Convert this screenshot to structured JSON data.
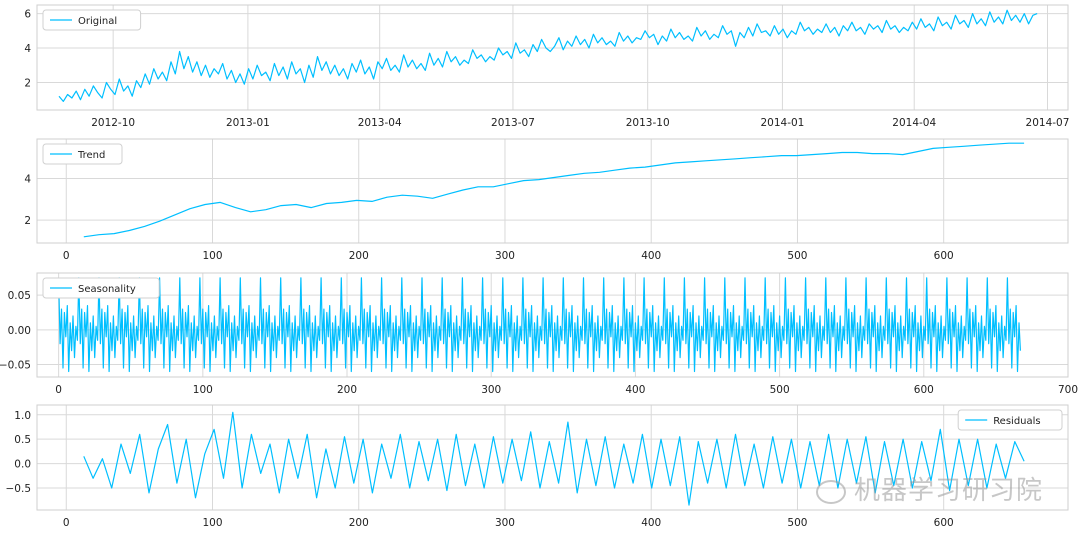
{
  "accent_color": "#00bfff",
  "watermark": {
    "text": "机器学习研习院",
    "icon": "wechat-icon"
  },
  "chart_data": [
    {
      "type": "line",
      "legend": {
        "label": "Original",
        "position": "top-left"
      },
      "x_kind": "date",
      "xlim": [
        "2012-08-10",
        "2014-07-15"
      ],
      "ylim": [
        0.4,
        6.5
      ],
      "x_ticks": [
        "2012-10-01",
        "2013-01-01",
        "2013-04-01",
        "2013-07-01",
        "2013-10-01",
        "2014-01-01",
        "2014-04-01",
        "2014-07-01"
      ],
      "x_tick_labels": [
        "2012-10",
        "2013-01",
        "2013-04",
        "2013-07",
        "2013-10",
        "2014-01",
        "2014-04",
        "2014-07"
      ],
      "y_ticks": [
        2,
        4,
        6
      ],
      "y_tick_labels": [
        "2",
        "4",
        "6"
      ],
      "grid": true,
      "series": [
        {
          "x_start": "2012-08-25",
          "x_end": "2014-06-24",
          "values": [
            1.2,
            0.9,
            1.3,
            1.1,
            1.5,
            1.0,
            1.6,
            1.2,
            1.8,
            1.4,
            1.1,
            2.0,
            1.6,
            1.3,
            2.2,
            1.5,
            1.8,
            1.2,
            2.1,
            1.7,
            2.5,
            1.9,
            2.8,
            2.2,
            2.6,
            2.1,
            3.2,
            2.5,
            3.8,
            2.8,
            3.5,
            2.6,
            3.2,
            2.4,
            3.0,
            2.3,
            2.8,
            2.5,
            3.1,
            2.2,
            2.7,
            2.0,
            2.5,
            1.9,
            2.8,
            2.2,
            3.0,
            2.4,
            2.6,
            2.1,
            3.1,
            2.4,
            2.9,
            2.2,
            3.2,
            2.5,
            2.8,
            2.0,
            3.0,
            2.3,
            3.5,
            2.7,
            3.2,
            2.5,
            3.0,
            2.4,
            2.8,
            2.2,
            3.1,
            2.6,
            3.3,
            2.5,
            2.9,
            2.2,
            3.2,
            2.8,
            3.4,
            2.7,
            3.0,
            2.6,
            3.6,
            2.9,
            3.3,
            2.8,
            3.1,
            2.7,
            3.7,
            3.0,
            3.4,
            2.9,
            3.8,
            3.2,
            3.5,
            3.0,
            3.3,
            3.1,
            3.9,
            3.4,
            3.6,
            3.2,
            3.5,
            3.3,
            4.0,
            3.6,
            3.8,
            3.4,
            4.3,
            3.7,
            3.9,
            3.5,
            4.2,
            3.8,
            4.5,
            4.0,
            3.8,
            4.1,
            4.6,
            3.9,
            4.4,
            4.1,
            4.7,
            4.2,
            4.5,
            4.0,
            4.8,
            4.3,
            4.6,
            4.2,
            4.4,
            4.1,
            4.9,
            4.4,
            4.7,
            4.3,
            4.6,
            4.5,
            5.0,
            4.6,
            4.8,
            4.2,
            4.7,
            4.4,
            5.1,
            4.6,
            4.9,
            4.5,
            4.7,
            4.4,
            5.2,
            4.7,
            5.0,
            4.5,
            4.8,
            4.6,
            5.3,
            4.8,
            5.0,
            4.1,
            4.9,
            4.6,
            5.2,
            4.7,
            5.4,
            4.9,
            5.0,
            4.7,
            5.3,
            4.8,
            5.1,
            4.6,
            5.0,
            4.8,
            5.5,
            5.0,
            5.2,
            4.8,
            5.1,
            4.9,
            5.4,
            4.9,
            5.2,
            4.7,
            5.3,
            5.0,
            5.5,
            5.0,
            5.2,
            4.8,
            5.4,
            5.1,
            5.3,
            4.9,
            5.6,
            5.1,
            5.3,
            4.9,
            5.2,
            5.0,
            5.5,
            5.1,
            5.7,
            5.2,
            5.4,
            5.0,
            5.8,
            5.3,
            5.5,
            5.1,
            5.9,
            5.4,
            5.6,
            5.2,
            6.0,
            5.4,
            5.7,
            5.3,
            6.1,
            5.5,
            5.8,
            5.4,
            6.2,
            5.6,
            5.9,
            5.5,
            6.0,
            5.4,
            5.9,
            6.0
          ]
        }
      ]
    },
    {
      "type": "line",
      "legend": {
        "label": "Trend",
        "position": "top-left"
      },
      "x_kind": "index",
      "xlim": [
        -20,
        685
      ],
      "ylim": [
        0.9,
        5.9
      ],
      "x_ticks": [
        0,
        100,
        200,
        300,
        400,
        500,
        600
      ],
      "x_tick_labels": [
        "0",
        "100",
        "200",
        "300",
        "400",
        "500",
        "600"
      ],
      "y_ticks": [
        2,
        4
      ],
      "y_tick_labels": [
        "2",
        "4"
      ],
      "grid": true,
      "series": [
        {
          "x_start": 12,
          "x_end": 655,
          "values": [
            1.2,
            1.3,
            1.35,
            1.5,
            1.7,
            1.95,
            2.25,
            2.55,
            2.75,
            2.85,
            2.6,
            2.4,
            2.5,
            2.7,
            2.75,
            2.6,
            2.8,
            2.85,
            2.95,
            2.9,
            3.1,
            3.2,
            3.15,
            3.05,
            3.25,
            3.45,
            3.6,
            3.6,
            3.75,
            3.9,
            3.95,
            4.05,
            4.15,
            4.25,
            4.3,
            4.4,
            4.5,
            4.55,
            4.65,
            4.75,
            4.8,
            4.85,
            4.9,
            4.95,
            5.0,
            5.05,
            5.1,
            5.1,
            5.15,
            5.2,
            5.25,
            5.25,
            5.2,
            5.2,
            5.15,
            5.3,
            5.45,
            5.5,
            5.55,
            5.6,
            5.65,
            5.7,
            5.7
          ]
        }
      ]
    },
    {
      "type": "line",
      "legend": {
        "label": "Seasonality",
        "position": "top-left"
      },
      "x_kind": "index",
      "xlim": [
        -15,
        700
      ],
      "ylim": [
        -0.068,
        0.082
      ],
      "x_ticks": [
        0,
        100,
        200,
        300,
        400,
        500,
        600,
        700
      ],
      "x_tick_labels": [
        "0",
        "100",
        "200",
        "300",
        "400",
        "500",
        "600",
        "700"
      ],
      "y_ticks": [
        -0.05,
        0.0,
        0.05
      ],
      "y_tick_labels": [
        "−0.05",
        "0.00",
        "0.05"
      ],
      "grid": true,
      "series": [
        {
          "x_start": 0,
          "x_end": 667,
          "period": 14,
          "pattern": [
            0.075,
            -0.02,
            0.03,
            -0.055,
            0.025,
            -0.01,
            0.035,
            -0.06,
            0.01,
            -0.03,
            0.02,
            -0.04,
            0.005,
            -0.015
          ]
        }
      ]
    },
    {
      "type": "line",
      "legend": {
        "label": "Residuals",
        "position": "top-right"
      },
      "x_kind": "index",
      "xlim": [
        -20,
        685
      ],
      "ylim": [
        -0.95,
        1.2
      ],
      "x_ticks": [
        0,
        100,
        200,
        300,
        400,
        500,
        600
      ],
      "x_tick_labels": [
        "0",
        "100",
        "200",
        "300",
        "400",
        "500",
        "600"
      ],
      "y_ticks": [
        -0.5,
        0.0,
        0.5,
        1.0
      ],
      "y_tick_labels": [
        "−0.5",
        "0.0",
        "0.5",
        "1.0"
      ],
      "grid": true,
      "series": [
        {
          "x_start": 12,
          "x_end": 655,
          "values": [
            0.15,
            -0.3,
            0.1,
            -0.5,
            0.4,
            -0.2,
            0.6,
            -0.6,
            0.3,
            0.8,
            -0.4,
            0.5,
            -0.7,
            0.2,
            0.7,
            -0.3,
            1.05,
            -0.5,
            0.6,
            -0.2,
            0.4,
            -0.6,
            0.5,
            -0.3,
            0.6,
            -0.7,
            0.3,
            -0.5,
            0.55,
            -0.4,
            0.5,
            -0.6,
            0.4,
            -0.3,
            0.6,
            -0.5,
            0.45,
            -0.35,
            0.5,
            -0.55,
            0.6,
            -0.45,
            0.4,
            -0.5,
            0.55,
            -0.4,
            0.5,
            -0.35,
            0.65,
            -0.5,
            0.45,
            -0.4,
            0.85,
            -0.6,
            0.5,
            -0.45,
            0.55,
            -0.5,
            0.4,
            -0.4,
            0.6,
            -0.5,
            0.5,
            -0.45,
            0.55,
            -0.85,
            0.45,
            -0.4,
            0.5,
            -0.5,
            0.6,
            -0.45,
            0.4,
            -0.5,
            0.55,
            -0.4,
            0.5,
            -0.5,
            0.45,
            -0.45,
            0.6,
            -0.5,
            0.5,
            -0.4,
            0.55,
            -0.6,
            0.45,
            -0.45,
            0.5,
            -0.5,
            0.45,
            -0.35,
            0.7,
            -0.55,
            0.5,
            -0.45,
            0.5,
            -0.5,
            0.4,
            -0.3,
            0.45,
            0.05
          ]
        }
      ]
    }
  ]
}
